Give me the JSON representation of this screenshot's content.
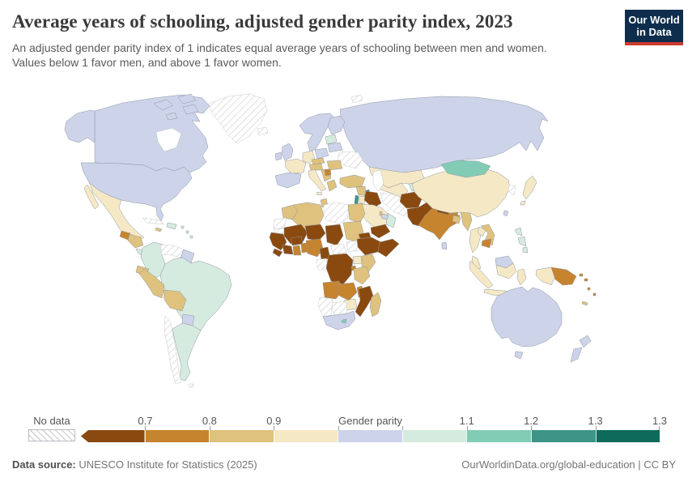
{
  "header": {
    "title": "Average years of schooling, adjusted gender parity index, 2023",
    "subtitle_line1": "An adjusted gender parity index of 1 indicates equal average years of schooling between men and women.",
    "subtitle_line2": "Values below 1 favor men, and above 1 favor women.",
    "logo": {
      "line1": "Our World",
      "line2": "in Data",
      "bg_color": "#0f2e4d",
      "accent_color": "#cf3a2d"
    }
  },
  "legend": {
    "no_data_label": "No data",
    "bins": [
      {
        "id": "b1",
        "color": "#8a4a0f",
        "tick_label": "0.7"
      },
      {
        "id": "b2",
        "color": "#c6842f",
        "tick_label": "0.8"
      },
      {
        "id": "b3",
        "color": "#dfc27d",
        "tick_label": "0.9"
      },
      {
        "id": "b4",
        "color": "#f5e8c4",
        "tick_label": ""
      },
      {
        "id": "b5",
        "color": "#cdd3e9",
        "tick_label": "",
        "center_label": "Gender parity"
      },
      {
        "id": "b6",
        "color": "#d5ebdf",
        "tick_label": "1.1"
      },
      {
        "id": "b7",
        "color": "#82ccb6",
        "tick_label": "1.2"
      },
      {
        "id": "b8",
        "color": "#3e9487",
        "tick_label": "1.3"
      },
      {
        "id": "b9",
        "color": "#0e6a5b",
        "tick_label": "1.3"
      }
    ],
    "nodata_pattern": "diagonal-hatch"
  },
  "footer": {
    "source_label": "Data source:",
    "source_text": " UNESCO Institute for Statistics (2025)",
    "attribution": "OurWorldinData.org/global-education | CC BY"
  },
  "chart_data": {
    "type": "heatmap",
    "subtype": "choropleth_world_map",
    "title": "Average years of schooling, adjusted gender parity index, 2023",
    "value_note": "Countries are shaded by adjusted gender parity index bin; browns favor men, greens favor women, lavender is near parity.",
    "legend_axis": [
      "0.7",
      "0.8",
      "0.9",
      "Gender parity",
      "1.1",
      "1.2",
      "1.3",
      "1.3"
    ],
    "regions": [
      {
        "name": "russia",
        "bin": "b5"
      },
      {
        "name": "canada",
        "bin": "b5"
      },
      {
        "name": "alaska",
        "bin": "b5"
      },
      {
        "name": "arctic-islands",
        "bin": "b5"
      },
      {
        "name": "greenland",
        "bin": "nodata"
      },
      {
        "name": "iceland",
        "bin": "nodata"
      },
      {
        "name": "svalbard",
        "bin": "nodata"
      },
      {
        "name": "usa",
        "bin": "b5"
      },
      {
        "name": "mexico",
        "bin": "b4"
      },
      {
        "name": "guatemala",
        "bin": "b2"
      },
      {
        "name": "honduras-nicaragua",
        "bin": "b3"
      },
      {
        "name": "costa-rica-panama",
        "bin": "b6"
      },
      {
        "name": "cuba",
        "bin": "nodata"
      },
      {
        "name": "hispaniola",
        "bin": "b6"
      },
      {
        "name": "jamaica",
        "bin": "b3"
      },
      {
        "name": "antilles",
        "bin": "b6"
      },
      {
        "name": "colombia",
        "bin": "b6"
      },
      {
        "name": "brazil",
        "bin": "b6"
      },
      {
        "name": "venezuela",
        "bin": "nodata"
      },
      {
        "name": "guyanas",
        "bin": "b5"
      },
      {
        "name": "ecuador",
        "bin": "b3"
      },
      {
        "name": "peru",
        "bin": "b3"
      },
      {
        "name": "bolivia",
        "bin": "b3"
      },
      {
        "name": "paraguay",
        "bin": "b5"
      },
      {
        "name": "argentina",
        "bin": "b6"
      },
      {
        "name": "chile",
        "bin": "nodata"
      },
      {
        "name": "falkland-islands",
        "bin": "nodata"
      },
      {
        "name": "scandinavia",
        "bin": "b5"
      },
      {
        "name": "finland",
        "bin": "b5"
      },
      {
        "name": "united-kingdom",
        "bin": "b5"
      },
      {
        "name": "ireland",
        "bin": "b5"
      },
      {
        "name": "iberia",
        "bin": "b5"
      },
      {
        "name": "france",
        "bin": "b4"
      },
      {
        "name": "germany",
        "bin": "b4"
      },
      {
        "name": "poland",
        "bin": "b5"
      },
      {
        "name": "baltics",
        "bin": "b6"
      },
      {
        "name": "belarus",
        "bin": "b5"
      },
      {
        "name": "ukraine",
        "bin": "nodata"
      },
      {
        "name": "czech-slovakia",
        "bin": "b3"
      },
      {
        "name": "austria-hungary",
        "bin": "b3"
      },
      {
        "name": "romania",
        "bin": "b3"
      },
      {
        "name": "italy",
        "bin": "b4"
      },
      {
        "name": "balkans",
        "bin": "b3"
      },
      {
        "name": "serbia",
        "bin": "b2"
      },
      {
        "name": "greece",
        "bin": "b3"
      },
      {
        "name": "turkey",
        "bin": "b3"
      },
      {
        "name": "caucasus",
        "bin": "b8"
      },
      {
        "name": "syria",
        "bin": "b3"
      },
      {
        "name": "israel-lebanon",
        "bin": "b8"
      },
      {
        "name": "jordan",
        "bin": "b4"
      },
      {
        "name": "iraq",
        "bin": "b1"
      },
      {
        "name": "saudi-arabia",
        "bin": "b4"
      },
      {
        "name": "yemen",
        "bin": "b1"
      },
      {
        "name": "oman",
        "bin": "b6"
      },
      {
        "name": "uae",
        "bin": "b5"
      },
      {
        "name": "qatar",
        "bin": "b3"
      },
      {
        "name": "iran",
        "bin": "nodata"
      },
      {
        "name": "kazakhstan",
        "bin": "b4"
      },
      {
        "name": "uzbekistan-turkmenistan",
        "bin": "b4"
      },
      {
        "name": "kyrgyzstan-tajikistan",
        "bin": "b6"
      },
      {
        "name": "afghanistan",
        "bin": "b1"
      },
      {
        "name": "pakistan",
        "bin": "b1"
      },
      {
        "name": "india",
        "bin": "b2"
      },
      {
        "name": "nepal",
        "bin": "b1"
      },
      {
        "name": "bhutan",
        "bin": "b2"
      },
      {
        "name": "bangladesh",
        "bin": "b3"
      },
      {
        "name": "sri-lanka",
        "bin": "b5"
      },
      {
        "name": "myanmar",
        "bin": "b3"
      },
      {
        "name": "china",
        "bin": "b4"
      },
      {
        "name": "mongolia",
        "bin": "b7"
      },
      {
        "name": "korea",
        "bin": "nodata"
      },
      {
        "name": "japan",
        "bin": "b4"
      },
      {
        "name": "taiwan",
        "bin": "b5"
      },
      {
        "name": "thailand",
        "bin": "b4"
      },
      {
        "name": "laos",
        "bin": "b4"
      },
      {
        "name": "vietnam",
        "bin": "b3"
      },
      {
        "name": "cambodia",
        "bin": "b2"
      },
      {
        "name": "malaysia-peninsula",
        "bin": "b4"
      },
      {
        "name": "sumatra",
        "bin": "b4"
      },
      {
        "name": "borneo-malaysia",
        "bin": "b5"
      },
      {
        "name": "borneo-indonesia",
        "bin": "b4"
      },
      {
        "name": "java",
        "bin": "b4"
      },
      {
        "name": "sulawesi",
        "bin": "b4"
      },
      {
        "name": "philippines",
        "bin": "b6"
      },
      {
        "name": "papua-indonesia",
        "bin": "b4"
      },
      {
        "name": "papua-new-guinea",
        "bin": "b2"
      },
      {
        "name": "solomon-islands",
        "bin": "b2"
      },
      {
        "name": "vanuatu-fiji",
        "bin": "b2"
      },
      {
        "name": "new-caledonia",
        "bin": "b3"
      },
      {
        "name": "australia",
        "bin": "b5"
      },
      {
        "name": "tasmania",
        "bin": "b5"
      },
      {
        "name": "new-zealand",
        "bin": "b5"
      },
      {
        "name": "morocco",
        "bin": "b3"
      },
      {
        "name": "western-sahara",
        "bin": "nodata"
      },
      {
        "name": "algeria",
        "bin": "b3"
      },
      {
        "name": "tunisia",
        "bin": "b3"
      },
      {
        "name": "libya",
        "bin": "nodata"
      },
      {
        "name": "egypt",
        "bin": "b3"
      },
      {
        "name": "mauritania",
        "bin": "nodata"
      },
      {
        "name": "mali",
        "bin": "b1"
      },
      {
        "name": "burkina-faso",
        "bin": "b1"
      },
      {
        "name": "niger",
        "bin": "b1"
      },
      {
        "name": "chad",
        "bin": "b1"
      },
      {
        "name": "sudan",
        "bin": "b3"
      },
      {
        "name": "senegal-guinea",
        "bin": "b1"
      },
      {
        "name": "sierra-leone-liberia",
        "bin": "b1"
      },
      {
        "name": "cote-divoire",
        "bin": "b1"
      },
      {
        "name": "ghana",
        "bin": "b2"
      },
      {
        "name": "togo-benin",
        "bin": "b2"
      },
      {
        "name": "nigeria",
        "bin": "b2"
      },
      {
        "name": "cameroon",
        "bin": "b1"
      },
      {
        "name": "central-african-republic",
        "bin": "nodata"
      },
      {
        "name": "south-sudan",
        "bin": "nodata"
      },
      {
        "name": "eritrea",
        "bin": "b1"
      },
      {
        "name": "ethiopia",
        "bin": "b1"
      },
      {
        "name": "somalia",
        "bin": "b1"
      },
      {
        "name": "gabon-congo",
        "bin": "nodata"
      },
      {
        "name": "drc",
        "bin": "b1"
      },
      {
        "name": "uganda",
        "bin": "b4"
      },
      {
        "name": "kenya",
        "bin": "b3"
      },
      {
        "name": "rwanda-burundi",
        "bin": "b2"
      },
      {
        "name": "tanzania",
        "bin": "b3"
      },
      {
        "name": "angola",
        "bin": "b2"
      },
      {
        "name": "zambia",
        "bin": "b2"
      },
      {
        "name": "malawi",
        "bin": "b2"
      },
      {
        "name": "mozambique",
        "bin": "b1"
      },
      {
        "name": "zimbabwe",
        "bin": "b4"
      },
      {
        "name": "botswana",
        "bin": "nodata"
      },
      {
        "name": "namibia",
        "bin": "nodata"
      },
      {
        "name": "south-africa",
        "bin": "b5"
      },
      {
        "name": "lesotho",
        "bin": "b7"
      },
      {
        "name": "madagascar",
        "bin": "b3"
      }
    ]
  }
}
